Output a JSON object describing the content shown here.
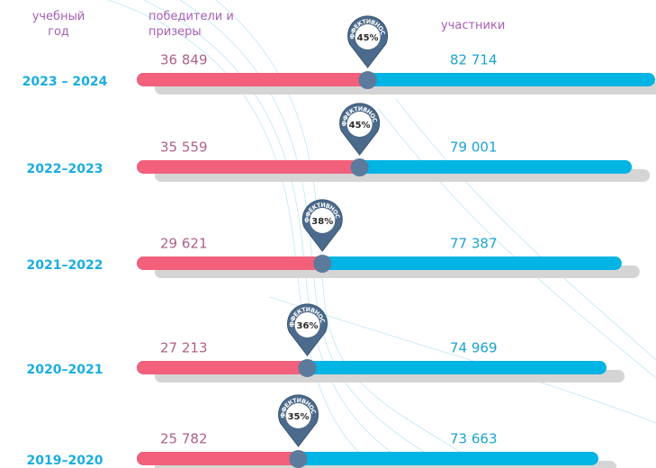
{
  "chart_data": {
    "type": "progress",
    "headers": {
      "year": "учебный год",
      "winners": "победители и призеры",
      "participants": "участники"
    },
    "badge_text": "ЭФФЕКТИВНОСТЬ",
    "categories": [
      "2023 – 2024",
      "2022–2023",
      "2021–2022",
      "2020–2021",
      "2019–2020"
    ],
    "series": [
      {
        "name": "победители и призеры",
        "color": "#f2607b",
        "values": [
          36849,
          35559,
          29621,
          27213,
          25782
        ],
        "value_labels": [
          "36 849",
          "35 559",
          "29 621",
          "27 213",
          "25 782"
        ]
      },
      {
        "name": "участники",
        "color": "#00b4e4",
        "values": [
          82714,
          79001,
          77387,
          74969,
          73663
        ],
        "value_labels": [
          "82 714",
          "79 001",
          "77 387",
          "74 969",
          "73 663"
        ]
      }
    ],
    "efficiency": {
      "values": [
        45,
        45,
        38,
        36,
        35
      ],
      "value_labels": [
        "45%",
        "45%",
        "38%",
        "36%",
        "35%"
      ]
    }
  }
}
